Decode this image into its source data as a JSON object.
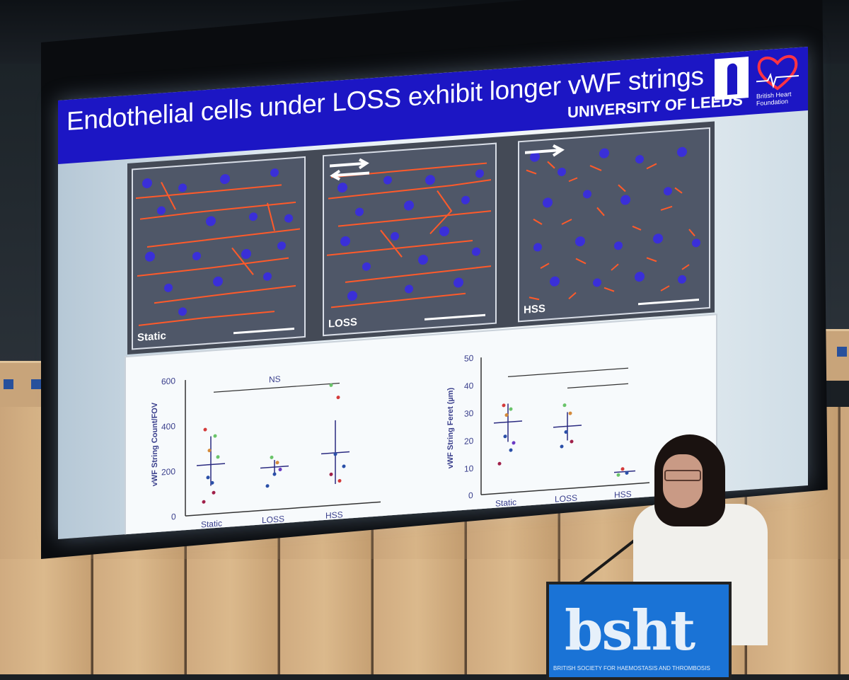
{
  "slide": {
    "title": "Endothelial cells under LOSS exhibit longer vWF strings",
    "institution": "UNIVERSITY OF LEEDS",
    "sponsor": "British Heart Foundation"
  },
  "micrographs": [
    {
      "label": "Static"
    },
    {
      "label": "LOSS"
    },
    {
      "label": "HSS"
    }
  ],
  "graph_count": {
    "ylabel": "vWF String Count/FOV",
    "yticks": [
      "600",
      "400",
      "200",
      "0"
    ],
    "categories": [
      "Static",
      "LOSS",
      "HSS"
    ],
    "significance": "NS"
  },
  "graph_feret": {
    "ylabel": "vWF String Feret (µm)",
    "yticks": [
      "50",
      "40",
      "30",
      "20",
      "10",
      "0"
    ],
    "categories": [
      "Static",
      "LOSS",
      "HSS"
    ]
  },
  "podium": {
    "logo": "bsht",
    "subtitle": "BRITISH SOCIETY FOR HAEMOSTASIS AND THROMBOSIS"
  },
  "colors": {
    "title_bar": "#1c16c4",
    "podium": "#1a73d6"
  }
}
